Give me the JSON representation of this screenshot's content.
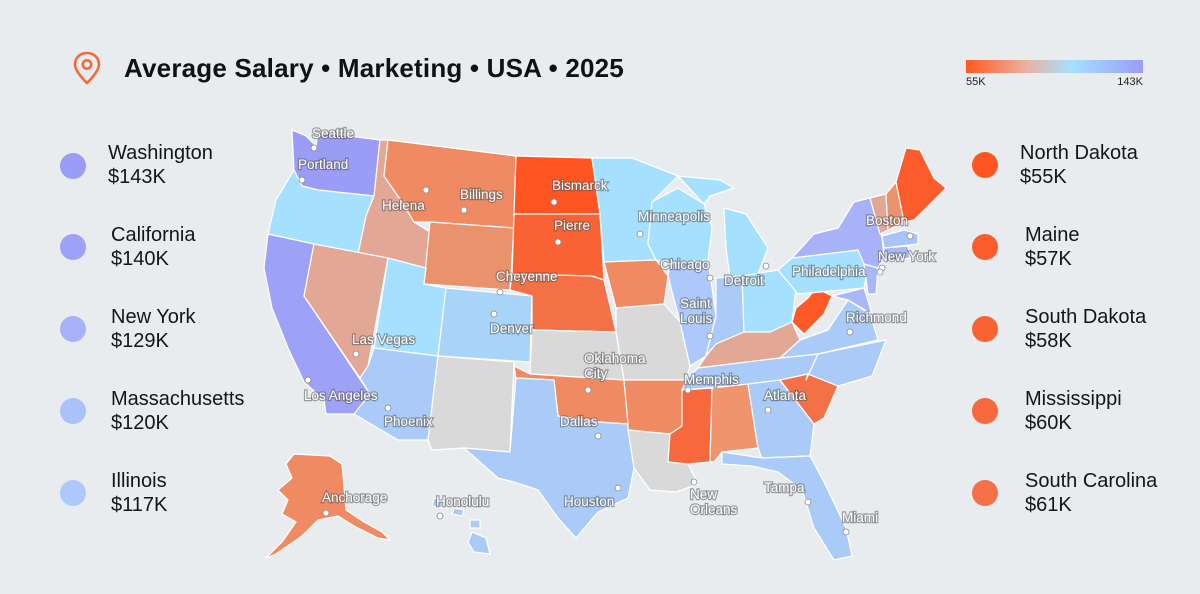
{
  "title": "Average Salary • Marketing • USA • 2025",
  "icon": "location-pin-icon",
  "scale": {
    "min_label": "55K",
    "max_label": "143K",
    "min_value": 55,
    "max_value": 143
  },
  "colors": {
    "lowest": "#ff5a1f",
    "low": "#f08a62",
    "mid_low": "#e3a796",
    "no_data": "#d9d9d9",
    "mid": "#a6e0ff",
    "mid_high": "#aacbf7",
    "high": "#a8b8f7",
    "highest": "#9a9cf6",
    "background": "#e8ecee"
  },
  "top_states": [
    {
      "name": "Washington",
      "salary": "$143K",
      "color": "#9a9cf6"
    },
    {
      "name": "California",
      "salary": "$140K",
      "color": "#9ea2f6"
    },
    {
      "name": "New York",
      "salary": "$129K",
      "color": "#a7b2f8"
    },
    {
      "name": "Massachusetts",
      "salary": "$120K",
      "color": "#abc1f9"
    },
    {
      "name": "Illinois",
      "salary": "$117K",
      "color": "#adc9fb"
    }
  ],
  "bottom_states": [
    {
      "name": "North Dakota",
      "salary": "$55K",
      "color": "#ff5522"
    },
    {
      "name": "Maine",
      "salary": "$57K",
      "color": "#fc5c2b"
    },
    {
      "name": "South Dakota",
      "salary": "$58K",
      "color": "#f96233"
    },
    {
      "name": "Mississippi",
      "salary": "$60K",
      "color": "#f7693c"
    },
    {
      "name": "South Carolina",
      "salary": "$61K",
      "color": "#f47047"
    }
  ],
  "cities": [
    {
      "name": "Seattle"
    },
    {
      "name": "Portland"
    },
    {
      "name": "Helena"
    },
    {
      "name": "Billings"
    },
    {
      "name": "Bismarck"
    },
    {
      "name": "Pierre"
    },
    {
      "name": "Minneapolis"
    },
    {
      "name": "Boston"
    },
    {
      "name": "New York"
    },
    {
      "name": "Philadelphia"
    },
    {
      "name": "Chicago"
    },
    {
      "name": "Detroit"
    },
    {
      "name": "Cheyenne"
    },
    {
      "name": "Denver"
    },
    {
      "name": "Saint Louis"
    },
    {
      "name": "Richmond"
    },
    {
      "name": "Las Vegas"
    },
    {
      "name": "Oklahoma City"
    },
    {
      "name": "Memphis"
    },
    {
      "name": "Los Angeles"
    },
    {
      "name": "Phoenix"
    },
    {
      "name": "Atlanta"
    },
    {
      "name": "Dallas"
    },
    {
      "name": "Anchorage"
    },
    {
      "name": "Honolulu"
    },
    {
      "name": "Houston"
    },
    {
      "name": "New Orleans"
    },
    {
      "name": "Tampa"
    },
    {
      "name": "Miami"
    }
  ]
}
